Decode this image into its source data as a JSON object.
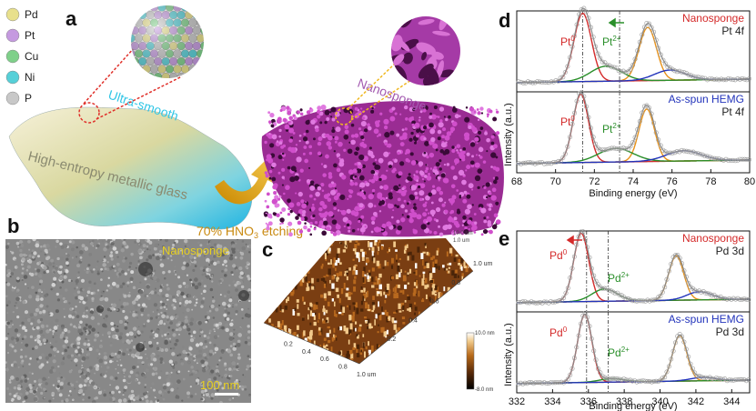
{
  "panels": {
    "a": "a",
    "b": "b",
    "c": "c",
    "d": "d",
    "e": "e"
  },
  "legend_a": [
    {
      "label": "Pd",
      "color": "#e8e08c"
    },
    {
      "label": "Pt",
      "color": "#c59ae0"
    },
    {
      "label": "Cu",
      "color": "#7fd08a"
    },
    {
      "label": "Ni",
      "color": "#56d0d8"
    },
    {
      "label": "P",
      "color": "#c8c8c8"
    }
  ],
  "panel_a": {
    "ultra_smooth": "Ultra-smooth",
    "glass_label": "High-entropy metallic glass",
    "nanosponge": "Nanosponge",
    "etching_prefix": "70% HNO",
    "etching_sub": "3",
    "etching_suffix": " etching"
  },
  "panel_b": {
    "label": "Nanosponge",
    "scalebar": "100 nm"
  },
  "panel_c": {
    "z_top": "10.0 nm",
    "z_bottom": "-8.0 nm",
    "axis_ticks_x": [
      "0.2",
      "0.4",
      "0.6",
      "0.8",
      "1.0 um"
    ],
    "axis_ticks_y": [
      "0.2",
      "0.4",
      "0.6",
      "0.8",
      "1.0 um"
    ],
    "z_ticks": [
      "10.0 nm",
      "1.0 um"
    ]
  },
  "panel_d": {
    "title_top": "Nanosponge",
    "sub_top": "Pt 4f",
    "title_bottom": "As-spun HEMG",
    "sub_bottom": "Pt 4f",
    "peak0": "Pt",
    "peak2": "Pt",
    "sup0": "0",
    "sup2": "2+",
    "ylabel": "Intensity (a.u.)",
    "xlabel": "Binding energy (eV)"
  },
  "panel_e": {
    "title_top": "Nanosponge",
    "sub_top": "Pd 3d",
    "title_bottom": "As-spun HEMG",
    "sub_bottom": "Pd 3d",
    "peak0": "Pd",
    "peak2": "Pd",
    "sup0": "0",
    "sup2": "2+",
    "ylabel": "Intensity (a.u.)",
    "xlabel": "Binding energy (eV)"
  },
  "chart_data": [
    {
      "type": "line",
      "panel": "d",
      "xlabel": "Binding energy (eV)",
      "ylabel": "Intensity (a.u.)",
      "xlim": [
        68,
        80
      ],
      "xticks": [
        68,
        70,
        72,
        74,
        76,
        78,
        80
      ],
      "ticks": [
        "68",
        "70",
        "72",
        "74",
        "76",
        "78",
        "80"
      ],
      "subplots": [
        {
          "name": "Nanosponge",
          "peaks": [
            {
              "center": 71.4,
              "amp": 1.0,
              "width": 0.45,
              "color": "#d42a2a"
            },
            {
              "center": 74.75,
              "amp": 0.78,
              "width": 0.45,
              "color": "#e8921a"
            },
            {
              "center": 72.6,
              "amp": 0.22,
              "width": 0.8,
              "color": "#2a8f2a"
            },
            {
              "center": 75.9,
              "amp": 0.15,
              "width": 0.8,
              "color": "#2233bb"
            }
          ],
          "dashed_lines": [
            71.4,
            73.3
          ]
        },
        {
          "name": "As-spun HEMG",
          "peaks": [
            {
              "center": 71.3,
              "amp": 1.0,
              "width": 0.4,
              "color": "#d42a2a"
            },
            {
              "center": 74.7,
              "amp": 0.77,
              "width": 0.4,
              "color": "#e8921a"
            },
            {
              "center": 73.1,
              "amp": 0.2,
              "width": 0.9,
              "color": "#2a8f2a"
            },
            {
              "center": 76.6,
              "amp": 0.15,
              "width": 0.9,
              "color": "#2233bb"
            }
          ],
          "dashed_lines": [
            71.4,
            73.3
          ]
        }
      ]
    },
    {
      "type": "line",
      "panel": "e",
      "xlabel": "Binding energy (eV)",
      "ylabel": "Intensity (a.u.)",
      "xlim": [
        332,
        345
      ],
      "xticks": [
        332,
        334,
        336,
        338,
        340,
        342,
        344
      ],
      "ticks": [
        "332",
        "334",
        "336",
        "338",
        "340",
        "342",
        "344"
      ],
      "subplots": [
        {
          "name": "Nanosponge",
          "peaks": [
            {
              "center": 335.6,
              "amp": 1.0,
              "width": 0.42,
              "color": "#d42a2a"
            },
            {
              "center": 340.9,
              "amp": 0.65,
              "width": 0.42,
              "color": "#e8921a"
            },
            {
              "center": 336.9,
              "amp": 0.18,
              "width": 0.7,
              "color": "#2a8f2a"
            },
            {
              "center": 342.2,
              "amp": 0.12,
              "width": 0.7,
              "color": "#2233bb"
            }
          ],
          "dashed_lines": [
            335.9,
            337.1
          ]
        },
        {
          "name": "As-spun HEMG",
          "peaks": [
            {
              "center": 335.8,
              "amp": 1.0,
              "width": 0.4,
              "color": "#d42a2a"
            },
            {
              "center": 341.1,
              "amp": 0.67,
              "width": 0.4,
              "color": "#e8921a"
            },
            {
              "center": 337.3,
              "amp": 0.05,
              "width": 0.7,
              "color": "#2a8f2a"
            },
            {
              "center": 342.4,
              "amp": 0.05,
              "width": 0.7,
              "color": "#2233bb"
            }
          ],
          "dashed_lines": [
            335.9,
            337.1
          ]
        }
      ]
    }
  ]
}
